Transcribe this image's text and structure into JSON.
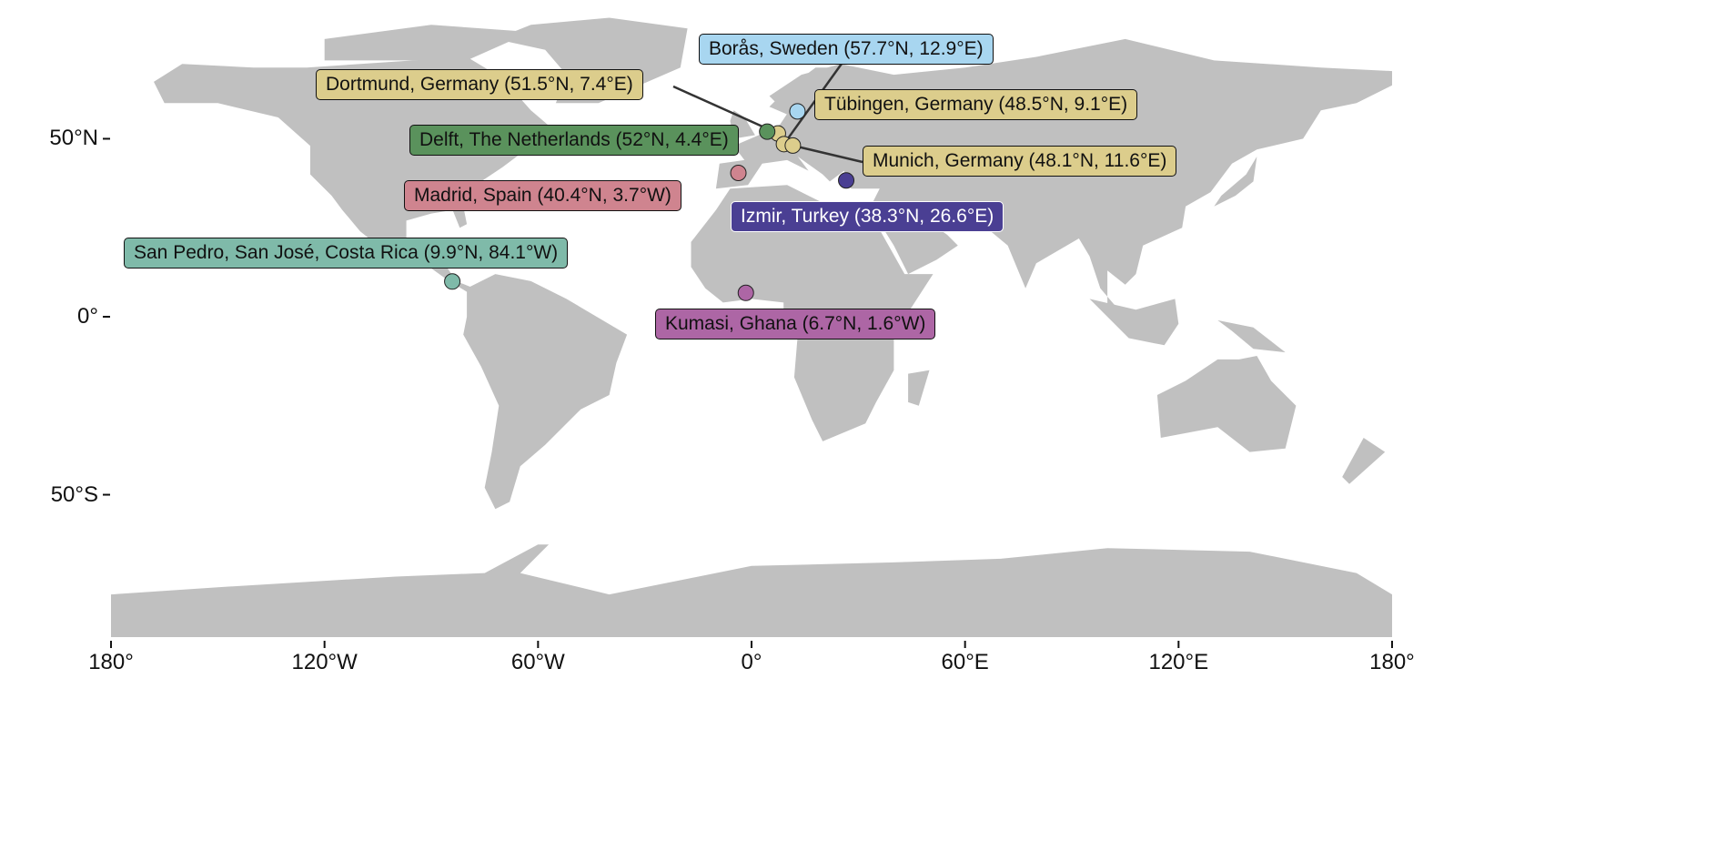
{
  "map": {
    "projection": "equirectangular",
    "land_color": "#c0c0c0",
    "lon_range": [
      -180,
      180
    ],
    "lat_range": [
      -90,
      84
    ],
    "y_ticks": [
      {
        "lat": 50,
        "label": "50°N"
      },
      {
        "lat": 0,
        "label": "0°"
      },
      {
        "lat": -50,
        "label": "50°S"
      }
    ],
    "x_ticks": [
      {
        "lon": -180,
        "label": "180°"
      },
      {
        "lon": -120,
        "label": "120°W"
      },
      {
        "lon": -60,
        "label": "60°W"
      },
      {
        "lon": 0,
        "label": "0°"
      },
      {
        "lon": 60,
        "label": "60°E"
      },
      {
        "lon": 120,
        "label": "120°E"
      },
      {
        "lon": 180,
        "label": "180°"
      }
    ]
  },
  "locations": [
    {
      "label": "Borås, Sweden (57.7°N, 12.9°E)",
      "lat": 57.7,
      "lon": 12.9,
      "color": "#a8d6f0",
      "text_color": "#111111"
    },
    {
      "label": "Dortmund, Germany (51.5°N, 7.4°E)",
      "lat": 51.5,
      "lon": 7.4,
      "color": "#dccd8c",
      "text_color": "#111111"
    },
    {
      "label": "Tübingen, Germany (48.5°N, 9.1°E)",
      "lat": 48.5,
      "lon": 9.1,
      "color": "#dccd8c",
      "text_color": "#111111"
    },
    {
      "label": "Delft, The Netherlands (52°N, 4.4°E)",
      "lat": 52.0,
      "lon": 4.4,
      "color": "#5a925c",
      "text_color": "#111111"
    },
    {
      "label": "Munich, Germany (48.1°N, 11.6°E)",
      "lat": 48.1,
      "lon": 11.6,
      "color": "#dccd8c",
      "text_color": "#111111"
    },
    {
      "label": "Madrid, Spain (40.4°N, 3.7°W)",
      "lat": 40.4,
      "lon": -3.7,
      "color": "#cf848f",
      "text_color": "#111111"
    },
    {
      "label": "Izmir, Turkey (38.3°N, 26.6°E)",
      "lat": 38.3,
      "lon": 26.6,
      "color": "#4a3f93",
      "text_color": "#ffffff"
    },
    {
      "label": "San Pedro, San José, Costa Rica (9.9°N, 84.1°W)",
      "lat": 9.9,
      "lon": -84.1,
      "color": "#7fbaa9",
      "text_color": "#111111"
    },
    {
      "label": "Kumasi, Ghana (6.7°N, 1.6°W)",
      "lat": 6.7,
      "lon": -1.6,
      "color": "#ad66a5",
      "text_color": "#111111"
    }
  ]
}
